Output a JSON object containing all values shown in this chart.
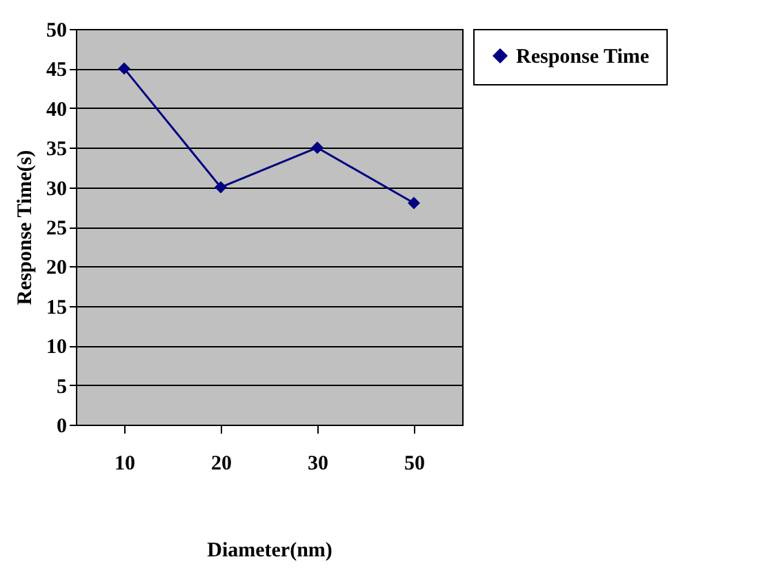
{
  "chart_data": {
    "type": "line",
    "xlabel": "Diameter(nm)",
    "ylabel": "Response  Time(s)",
    "categories": [
      "10",
      "20",
      "30",
      "50"
    ],
    "series": [
      {
        "name": "Response Time",
        "color": "#000080",
        "values": [
          45,
          30,
          35,
          28
        ]
      }
    ],
    "ylim": [
      0,
      50
    ],
    "yticks": [
      0,
      5,
      10,
      15,
      20,
      25,
      30,
      35,
      40,
      45,
      50
    ],
    "grid": "y",
    "legend": "right",
    "marker": "diamond",
    "line_style": "solid"
  }
}
